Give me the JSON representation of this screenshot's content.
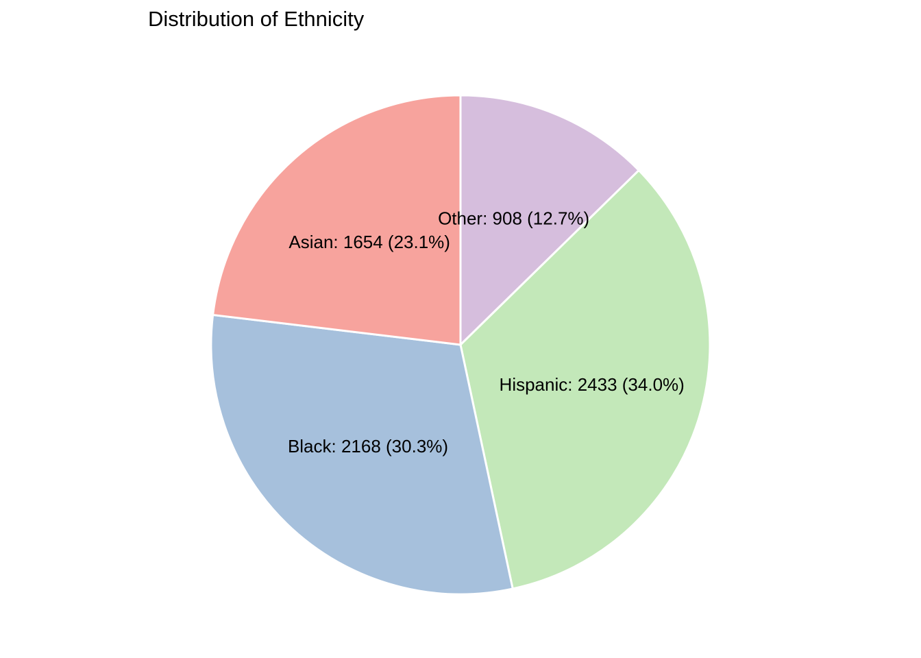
{
  "chart_data": {
    "type": "pie",
    "title": "Distribution of Ethnicity",
    "slices": [
      {
        "category": "Other",
        "value": 908,
        "percent": 12.7,
        "label": "Other: 908 (12.7%)",
        "color": "#D6BEDD"
      },
      {
        "category": "Hispanic",
        "value": 2433,
        "percent": 34.0,
        "label": "Hispanic: 2433 (34.0%)",
        "color": "#C3E8B9"
      },
      {
        "category": "Black",
        "value": 2168,
        "percent": 30.3,
        "label": "Black: 2168 (30.3%)",
        "color": "#A6C0DC"
      },
      {
        "category": "Asian",
        "value": 1654,
        "percent": 23.1,
        "label": "Asian: 1654 (23.1%)",
        "color": "#F7A39D"
      }
    ],
    "start_angle": "12 o'clock",
    "direction": "clockwise",
    "legend": "none"
  }
}
